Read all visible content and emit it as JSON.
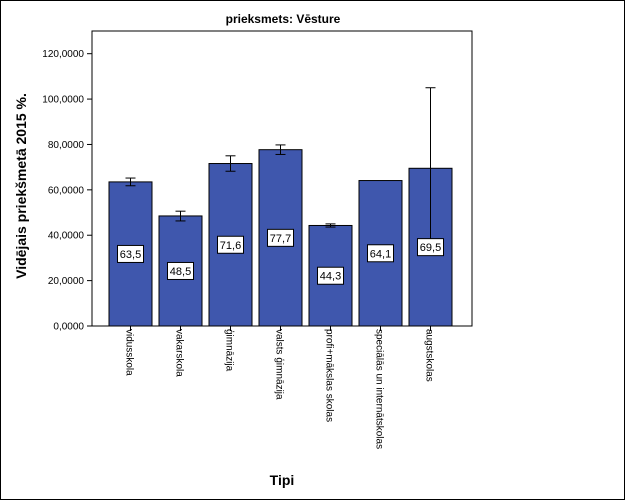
{
  "chart_data": {
    "type": "bar",
    "title": "prieksmets: Vēsture",
    "xlabel": "Tipi",
    "ylabel": "Vidējais priekšmetā 2015 %.",
    "ylim": [
      0,
      130
    ],
    "yticks": [
      "0,0000",
      "20,0000",
      "40,0000",
      "60,0000",
      "80,0000",
      "100,0000",
      "120,0000"
    ],
    "ytick_values": [
      0,
      20,
      40,
      60,
      80,
      100,
      120
    ],
    "categories": [
      "vidusskola",
      "vakarskola",
      "ģimnāzija",
      "valsts ģimnāzija",
      "profi+mākslas skolas",
      "speciālās un internātskolas",
      "augstskolas"
    ],
    "values": [
      63.5,
      48.5,
      71.6,
      77.7,
      44.3,
      64.1,
      69.5
    ],
    "data_labels": [
      "63,5",
      "48,5",
      "71,6",
      "77,7",
      "44,3",
      "64,1",
      "69,5"
    ],
    "error_bars": [
      {
        "low": 61.8,
        "high": 65.2
      },
      {
        "low": 46.3,
        "high": 50.6
      },
      {
        "low": 68.2,
        "high": 75.0
      },
      {
        "low": 75.6,
        "high": 79.8
      },
      {
        "low": 43.6,
        "high": 45.0
      },
      null,
      {
        "low": 34.0,
        "high": 105.0
      }
    ],
    "bar_color": "#3f57ad",
    "grid": false,
    "legend": "none"
  }
}
